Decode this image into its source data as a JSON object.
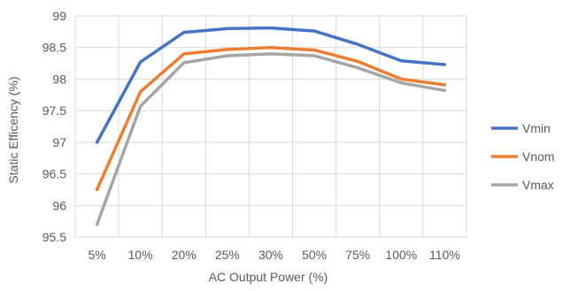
{
  "chart_data": {
    "type": "line",
    "title": "",
    "xlabel": "AC Output Power (%)",
    "ylabel": "Static Efficency (%)",
    "categories": [
      "5%",
      "10%",
      "20%",
      "25%",
      "30%",
      "50%",
      "75%",
      "100%",
      "110%"
    ],
    "ylim": [
      95.5,
      99
    ],
    "yticks": [
      95.5,
      96,
      96.5,
      97,
      97.5,
      98,
      98.5,
      99
    ],
    "ytick_labels": [
      "95.5",
      "96",
      "96.5",
      "97",
      "97.5",
      "98",
      "98.5",
      "99"
    ],
    "grid": true,
    "legend": "right",
    "series": [
      {
        "name": "Vmin",
        "color": "#4472C4",
        "values": [
          97.0,
          98.27,
          98.74,
          98.8,
          98.81,
          98.76,
          98.55,
          98.29,
          98.23
        ]
      },
      {
        "name": "Vnom",
        "color": "#ED7D31",
        "values": [
          96.25,
          97.8,
          98.4,
          98.47,
          98.5,
          98.46,
          98.28,
          98.0,
          97.91
        ]
      },
      {
        "name": "Vmax",
        "color": "#A5A5A5",
        "values": [
          95.7,
          97.57,
          98.26,
          98.37,
          98.4,
          98.37,
          98.18,
          97.94,
          97.82
        ]
      }
    ]
  }
}
